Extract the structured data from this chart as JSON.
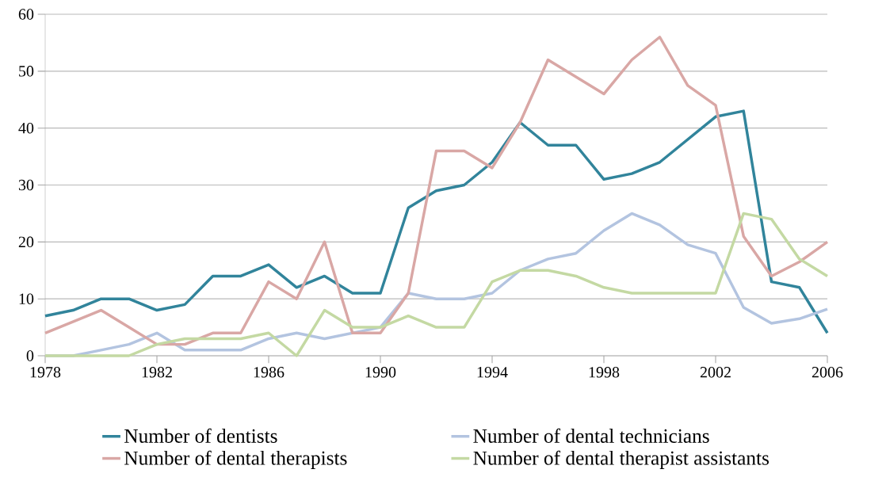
{
  "chart_data": {
    "type": "line",
    "x": [
      1978,
      1979,
      1980,
      1981,
      1982,
      1983,
      1984,
      1985,
      1986,
      1987,
      1988,
      1989,
      1990,
      1991,
      1992,
      1993,
      1994,
      1995,
      1996,
      1997,
      1998,
      1999,
      2000,
      2001,
      2002,
      2003,
      2004,
      2005,
      2006
    ],
    "series": [
      {
        "name": "Number of dentists",
        "color": "#31849b",
        "values": [
          7,
          8,
          10,
          10,
          8,
          9,
          14,
          14,
          16,
          12,
          14,
          11,
          11,
          26,
          29,
          30,
          34,
          41,
          37,
          37,
          31,
          32,
          34,
          38,
          42,
          43,
          13,
          12,
          4
        ]
      },
      {
        "name": "Number of dental technicians",
        "color": "#b3c4e0",
        "values": [
          0,
          0,
          1,
          2,
          4,
          1,
          1,
          1,
          3,
          4,
          3,
          4,
          5,
          11,
          10,
          10,
          11,
          15,
          17,
          18,
          22,
          25,
          23,
          19.5,
          18,
          8.5,
          5.7,
          6.5,
          8.2
        ]
      },
      {
        "name": "Number of dental therapists",
        "color": "#d9a7a5",
        "values": [
          4,
          6,
          8,
          5,
          2,
          2,
          4,
          4,
          13,
          10,
          20,
          4,
          4,
          11,
          36,
          36,
          33,
          41,
          52,
          49,
          46,
          52,
          56,
          47.5,
          44,
          21,
          14,
          16.5,
          20
        ]
      },
      {
        "name": "Number of dental therapist assistants",
        "color": "#c4d9a3",
        "values": [
          0,
          0,
          0,
          0,
          2,
          3,
          3,
          3,
          4,
          0,
          8,
          5,
          5,
          7,
          5,
          5,
          13,
          15,
          15,
          14,
          12,
          11,
          11,
          11,
          11,
          25,
          24,
          17,
          14
        ]
      }
    ],
    "xlim": [
      1978,
      2006
    ],
    "ylim": [
      0,
      60
    ],
    "xticks": [
      1978,
      1982,
      1986,
      1990,
      1994,
      1998,
      2002,
      2006
    ],
    "yticks": [
      0,
      10,
      20,
      30,
      40,
      50,
      60
    ],
    "grid": "y",
    "legend": "bottom",
    "marker": "none",
    "line_style": "solid"
  }
}
